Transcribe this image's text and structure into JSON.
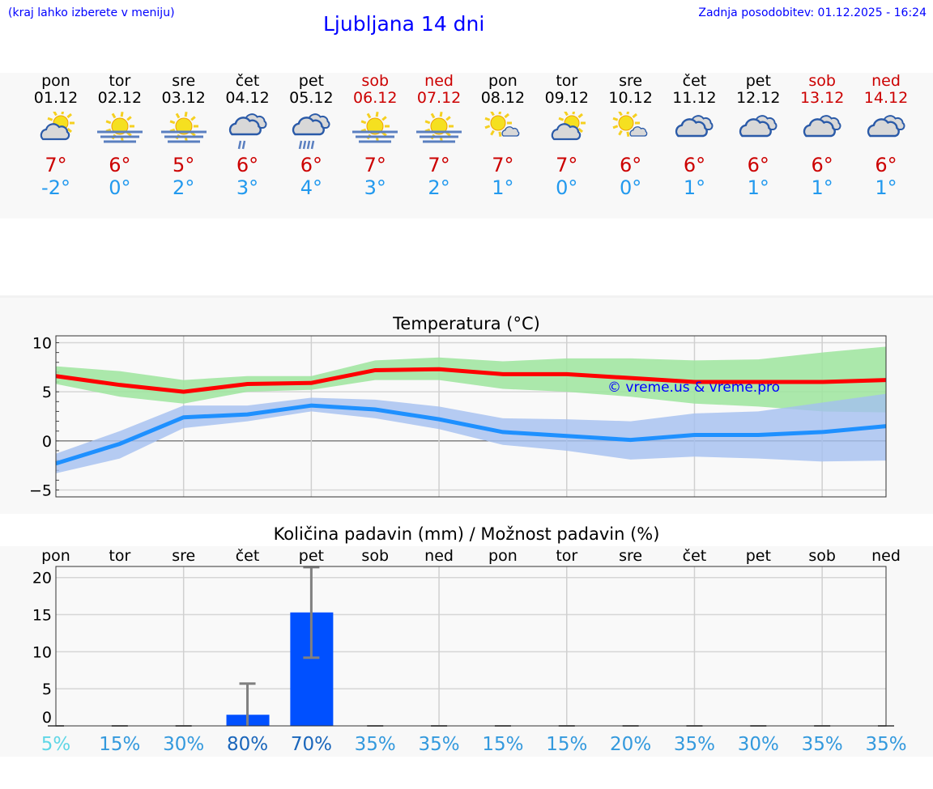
{
  "header": {
    "hint": "(kraj lahko izberete v meniju)",
    "title": "Ljubljana 14 dni",
    "updated": "Zadnja posodobitev: 01.12.2025 - 16:24"
  },
  "days": [
    {
      "name": "pon",
      "date": "01.12",
      "weekend": false,
      "icon": "partly-cloudy",
      "max": "7°",
      "min": "-2°"
    },
    {
      "name": "tor",
      "date": "02.12",
      "weekend": false,
      "icon": "sun-fog",
      "max": "6°",
      "min": "0°"
    },
    {
      "name": "sre",
      "date": "03.12",
      "weekend": false,
      "icon": "sun-fog",
      "max": "5°",
      "min": "2°"
    },
    {
      "name": "čet",
      "date": "04.12",
      "weekend": false,
      "icon": "cloud-light-rain",
      "max": "6°",
      "min": "3°"
    },
    {
      "name": "pet",
      "date": "05.12",
      "weekend": false,
      "icon": "cloud-rain",
      "max": "6°",
      "min": "4°"
    },
    {
      "name": "sob",
      "date": "06.12",
      "weekend": true,
      "icon": "sun-fog",
      "max": "7°",
      "min": "3°"
    },
    {
      "name": "ned",
      "date": "07.12",
      "weekend": true,
      "icon": "sun-fog",
      "max": "7°",
      "min": "2°"
    },
    {
      "name": "pon",
      "date": "08.12",
      "weekend": false,
      "icon": "mostly-sunny",
      "max": "7°",
      "min": "1°"
    },
    {
      "name": "tor",
      "date": "09.12",
      "weekend": false,
      "icon": "partly-cloudy",
      "max": "7°",
      "min": "0°"
    },
    {
      "name": "sre",
      "date": "10.12",
      "weekend": false,
      "icon": "mostly-sunny",
      "max": "6°",
      "min": "0°"
    },
    {
      "name": "čet",
      "date": "11.12",
      "weekend": false,
      "icon": "overcast",
      "max": "6°",
      "min": "1°"
    },
    {
      "name": "pet",
      "date": "12.12",
      "weekend": false,
      "icon": "overcast",
      "max": "6°",
      "min": "1°"
    },
    {
      "name": "sob",
      "date": "13.12",
      "weekend": true,
      "icon": "overcast",
      "max": "6°",
      "min": "1°"
    },
    {
      "name": "ned",
      "date": "14.12",
      "weekend": true,
      "icon": "overcast",
      "max": "6°",
      "min": "1°"
    }
  ],
  "colors": {
    "max": "#ff0000",
    "min": "#1e90ff",
    "max_band": "#9de59d",
    "min_band": "#a4bff0",
    "bar": "#0050ff",
    "err": "#808080"
  },
  "chart_data": [
    {
      "type": "line",
      "title": "Temperatura (°C)",
      "ylim": [
        -5.7,
        10.7
      ],
      "yticks": [
        10,
        5,
        0,
        -5
      ],
      "grid": true,
      "watermark": "© vreme.us & vreme.pro",
      "x": [
        "01.12",
        "02.12",
        "03.12",
        "04.12",
        "05.12",
        "06.12",
        "07.12",
        "08.12",
        "09.12",
        "10.12",
        "11.12",
        "12.12",
        "13.12",
        "14.12"
      ],
      "series": [
        {
          "key": "max",
          "values": [
            6.6,
            5.7,
            5.0,
            5.8,
            5.9,
            7.2,
            7.3,
            6.8,
            6.8,
            6.4,
            6.0,
            6.0,
            6.0,
            6.2
          ],
          "band_high": [
            7.6,
            7.1,
            6.2,
            6.6,
            6.6,
            8.2,
            8.5,
            8.1,
            8.4,
            8.4,
            8.2,
            8.3,
            9.0,
            9.6
          ],
          "band_low": [
            5.8,
            4.5,
            3.8,
            5.0,
            5.2,
            6.2,
            6.2,
            5.3,
            5.0,
            4.5,
            3.8,
            3.5,
            3.0,
            2.9
          ]
        },
        {
          "key": "min",
          "values": [
            -2.3,
            -0.3,
            2.4,
            2.7,
            3.6,
            3.2,
            2.2,
            0.9,
            0.5,
            0.1,
            0.6,
            0.6,
            0.9,
            1.5
          ],
          "band_high": [
            -1.3,
            1.0,
            3.6,
            3.6,
            4.4,
            4.2,
            3.5,
            2.3,
            2.2,
            2.0,
            2.8,
            3.0,
            3.9,
            4.8
          ],
          "band_low": [
            -3.3,
            -1.8,
            1.3,
            2.0,
            3.0,
            2.3,
            1.2,
            -0.4,
            -1.0,
            -1.9,
            -1.6,
            -1.8,
            -2.1,
            -2.0
          ]
        }
      ]
    },
    {
      "type": "bar",
      "title": "Količina padavin (mm) / Možnost padavin (%)",
      "ylim": [
        0,
        21.5
      ],
      "yticks": [
        20,
        15,
        10,
        5,
        0
      ],
      "grid": true,
      "categories": [
        "pon",
        "tor",
        "sre",
        "čet",
        "pet",
        "sob",
        "ned",
        "pon",
        "tor",
        "sre",
        "čet",
        "pet",
        "sob",
        "ned"
      ],
      "values": [
        0,
        0,
        0,
        1.5,
        15.3,
        0,
        0,
        0,
        0,
        0,
        0,
        0,
        0,
        0
      ],
      "err_low": [
        0,
        0,
        0,
        0,
        9.2,
        0,
        0,
        0,
        0,
        0,
        0,
        0,
        0,
        0
      ],
      "err_high": [
        0,
        0,
        0,
        5.7,
        21.4,
        0,
        0,
        0,
        0,
        0,
        0,
        0,
        0,
        0
      ],
      "probability": [
        "5%",
        "15%",
        "30%",
        "80%",
        "70%",
        "35%",
        "35%",
        "15%",
        "15%",
        "20%",
        "35%",
        "30%",
        "35%",
        "35%"
      ],
      "probability_colors": [
        "#5fd6e6",
        "#3399dd",
        "#3399dd",
        "#1a66bb",
        "#1a66bb",
        "#3399dd",
        "#3399dd",
        "#3399dd",
        "#3399dd",
        "#3399dd",
        "#3399dd",
        "#3399dd",
        "#3399dd",
        "#3399dd"
      ]
    }
  ]
}
